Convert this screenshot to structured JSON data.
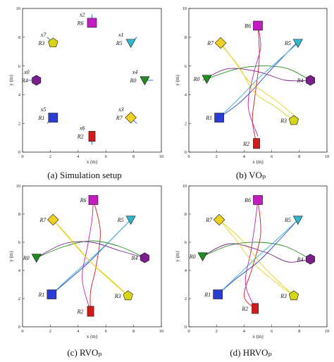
{
  "robot_colors": [
    "#1e8c1e",
    "#2b3bd6",
    "#d11a1a",
    "#d8d614",
    "#7a1f8c",
    "#2fb8cf",
    "#c21cc2",
    "#f0d020"
  ],
  "robot_shapes": [
    "triangle",
    "square",
    "rect",
    "pentagon",
    "hexagon",
    "triangle",
    "square",
    "diamond"
  ],
  "robot_labels": [
    "R0",
    "R1",
    "R2",
    "R3",
    "R4",
    "R5",
    "R6",
    "R7"
  ],
  "panel_captions": {
    "a": "(a) Simulation setup",
    "b": "(b) VOₚ",
    "c": "(c) RVOₚ",
    "d": "(d) HRVOₚ"
  },
  "chart_data": [
    {
      "type": "scatter",
      "panel": "a",
      "title": "(a) Simulation setup",
      "xlabel": "x (m)",
      "ylabel": "y (m)",
      "xlim": [
        0,
        10
      ],
      "ylim": [
        0,
        10
      ],
      "xticks": [
        0,
        2,
        4,
        6,
        8,
        10
      ],
      "yticks": [
        0,
        2,
        4,
        6,
        8,
        10
      ],
      "grid": false,
      "robots": [
        {
          "label": "R0",
          "goal_label": "x4",
          "x": 8.8,
          "y": 5.0
        },
        {
          "label": "R1",
          "goal_label": "x5",
          "x": 2.2,
          "y": 2.4
        },
        {
          "label": "R2",
          "goal_label": "x6",
          "x": 5.0,
          "y": 1.1
        },
        {
          "label": "R3",
          "goal_label": "x7",
          "x": 2.2,
          "y": 7.6
        },
        {
          "label": "R4",
          "goal_label": "x0",
          "x": 1.0,
          "y": 5.0
        },
        {
          "label": "R5",
          "goal_label": "x1",
          "x": 7.8,
          "y": 7.6
        },
        {
          "label": "R6",
          "goal_label": "x2",
          "x": 5.0,
          "y": 9.0
        },
        {
          "label": "R7",
          "goal_label": "x3",
          "x": 7.8,
          "y": 2.4
        }
      ]
    },
    {
      "type": "line",
      "panel": "b",
      "title": "(b) VOₚ",
      "xlabel": "x (m)",
      "ylabel": "y (m)",
      "xlim": [
        0,
        10
      ],
      "ylim": [
        0,
        10
      ],
      "xticks": [
        0,
        2,
        4,
        6,
        8,
        10
      ],
      "yticks": [
        0,
        2,
        4,
        6,
        8,
        10
      ],
      "grid": false,
      "robot_positions": [
        [
          1.3,
          5.1
        ],
        [
          2.2,
          2.4
        ],
        [
          4.9,
          0.6
        ],
        [
          7.6,
          2.2
        ],
        [
          8.8,
          5.0
        ],
        [
          7.9,
          7.6
        ],
        [
          5.0,
          8.8
        ],
        [
          2.3,
          7.6
        ]
      ],
      "trajectories": [
        [
          [
            8.8,
            5.0
          ],
          [
            7.2,
            5.8
          ],
          [
            5.5,
            6.0
          ],
          [
            3.5,
            5.8
          ],
          [
            1.3,
            5.1
          ]
        ],
        [
          [
            7.8,
            7.6
          ],
          [
            6.0,
            5.8
          ],
          [
            4.6,
            4.3
          ],
          [
            3.5,
            3.3
          ],
          [
            2.2,
            2.4
          ]
        ],
        [
          [
            5.0,
            9.0
          ],
          [
            5.1,
            6.5
          ],
          [
            4.8,
            4.0
          ],
          [
            4.6,
            2.2
          ],
          [
            4.9,
            0.6
          ]
        ],
        [
          [
            2.2,
            7.6
          ],
          [
            3.6,
            6.0
          ],
          [
            4.7,
            4.2
          ],
          [
            6.2,
            3.2
          ],
          [
            7.6,
            2.2
          ]
        ],
        [
          [
            1.0,
            5.0
          ],
          [
            2.8,
            5.8
          ],
          [
            5.0,
            5.6
          ],
          [
            7.0,
            5.0
          ],
          [
            8.8,
            5.0
          ]
        ],
        [
          [
            2.2,
            2.4
          ],
          [
            3.8,
            3.9
          ],
          [
            5.0,
            5.1
          ],
          [
            6.4,
            6.3
          ],
          [
            7.9,
            7.6
          ]
        ],
        [
          [
            5.0,
            1.1
          ],
          [
            4.3,
            3.2
          ],
          [
            4.7,
            5.5
          ],
          [
            5.2,
            7.3
          ],
          [
            5.0,
            8.8
          ]
        ],
        [
          [
            7.8,
            2.4
          ],
          [
            6.3,
            3.6
          ],
          [
            4.4,
            4.9
          ],
          [
            3.4,
            6.2
          ],
          [
            2.3,
            7.6
          ]
        ]
      ]
    },
    {
      "type": "line",
      "panel": "c",
      "title": "(c) RVOₚ",
      "xlabel": "x (m)",
      "ylabel": "y (m)",
      "xlim": [
        0,
        10
      ],
      "ylim": [
        0,
        10
      ],
      "xticks": [
        0,
        2,
        4,
        6,
        8,
        10
      ],
      "yticks": [
        0,
        2,
        4,
        6,
        8,
        10
      ],
      "grid": false,
      "robot_positions": [
        [
          1.0,
          4.9
        ],
        [
          2.1,
          2.3
        ],
        [
          4.9,
          1.1
        ],
        [
          7.6,
          2.2
        ],
        [
          8.8,
          4.9
        ],
        [
          7.8,
          7.6
        ],
        [
          5.1,
          9.0
        ],
        [
          2.2,
          7.6
        ]
      ],
      "trajectories": [
        [
          [
            8.8,
            4.9
          ],
          [
            7.0,
            5.7
          ],
          [
            5.0,
            6.1
          ],
          [
            3.0,
            5.7
          ],
          [
            1.0,
            4.9
          ]
        ],
        [
          [
            7.8,
            7.6
          ],
          [
            6.2,
            6.0
          ],
          [
            4.8,
            4.6
          ],
          [
            3.4,
            3.4
          ],
          [
            2.1,
            2.3
          ]
        ],
        [
          [
            5.1,
            9.0
          ],
          [
            5.6,
            6.8
          ],
          [
            5.3,
            4.3
          ],
          [
            4.9,
            2.5
          ],
          [
            4.9,
            1.1
          ]
        ],
        [
          [
            2.2,
            7.6
          ],
          [
            3.6,
            6.1
          ],
          [
            4.9,
            4.6
          ],
          [
            6.3,
            3.4
          ],
          [
            7.6,
            2.2
          ]
        ],
        [
          [
            1.0,
            4.9
          ],
          [
            3.0,
            5.9
          ],
          [
            5.0,
            6.0
          ],
          [
            7.0,
            5.4
          ],
          [
            8.8,
            4.9
          ]
        ],
        [
          [
            2.1,
            2.3
          ],
          [
            3.5,
            3.6
          ],
          [
            5.0,
            4.9
          ],
          [
            6.4,
            6.2
          ],
          [
            7.8,
            7.6
          ]
        ],
        [
          [
            4.9,
            1.1
          ],
          [
            4.3,
            3.4
          ],
          [
            4.7,
            5.8
          ],
          [
            5.0,
            7.6
          ],
          [
            5.1,
            9.0
          ]
        ],
        [
          [
            7.6,
            2.2
          ],
          [
            6.2,
            3.4
          ],
          [
            4.8,
            4.7
          ],
          [
            3.5,
            6.1
          ],
          [
            2.2,
            7.6
          ]
        ]
      ]
    },
    {
      "type": "line",
      "panel": "d",
      "title": "(d) HRVOₚ",
      "xlabel": "x (m)",
      "ylabel": "y (m)",
      "xlim": [
        0,
        10
      ],
      "ylim": [
        0,
        10
      ],
      "xticks": [
        0,
        2,
        4,
        6,
        8,
        10
      ],
      "yticks": [
        0,
        2,
        4,
        6,
        8,
        10
      ],
      "grid": false,
      "robot_positions": [
        [
          1.0,
          5.0
        ],
        [
          2.1,
          2.3
        ],
        [
          4.8,
          1.3
        ],
        [
          7.6,
          2.2
        ],
        [
          8.8,
          4.8
        ],
        [
          7.9,
          7.6
        ],
        [
          5.0,
          9.0
        ],
        [
          2.2,
          7.6
        ]
      ],
      "trajectories": [
        [
          [
            8.8,
            4.8
          ],
          [
            7.0,
            5.7
          ],
          [
            5.0,
            6.0
          ],
          [
            3.0,
            5.8
          ],
          [
            1.0,
            5.0
          ]
        ],
        [
          [
            7.9,
            7.6
          ],
          [
            6.4,
            6.0
          ],
          [
            5.0,
            4.6
          ],
          [
            3.4,
            3.4
          ],
          [
            2.1,
            2.3
          ]
        ],
        [
          [
            5.0,
            9.0
          ],
          [
            5.2,
            6.6
          ],
          [
            4.6,
            4.2
          ],
          [
            4.0,
            2.2
          ],
          [
            4.8,
            1.3
          ]
        ],
        [
          [
            2.2,
            7.6
          ],
          [
            3.8,
            6.2
          ],
          [
            5.2,
            4.5
          ],
          [
            6.4,
            3.3
          ],
          [
            7.6,
            2.2
          ]
        ],
        [
          [
            1.0,
            5.0
          ],
          [
            3.0,
            5.9
          ],
          [
            5.5,
            5.3
          ],
          [
            7.2,
            4.6
          ],
          [
            8.8,
            4.8
          ]
        ],
        [
          [
            2.1,
            2.3
          ],
          [
            3.6,
            3.7
          ],
          [
            5.0,
            5.0
          ],
          [
            6.5,
            6.3
          ],
          [
            7.9,
            7.6
          ]
        ],
        [
          [
            4.8,
            1.3
          ],
          [
            4.1,
            3.1
          ],
          [
            4.5,
            5.4
          ],
          [
            4.8,
            7.4
          ],
          [
            5.0,
            9.0
          ]
        ],
        [
          [
            7.6,
            2.2
          ],
          [
            6.1,
            3.3
          ],
          [
            4.6,
            4.6
          ],
          [
            3.4,
            6.2
          ],
          [
            2.2,
            7.6
          ]
        ]
      ]
    }
  ]
}
